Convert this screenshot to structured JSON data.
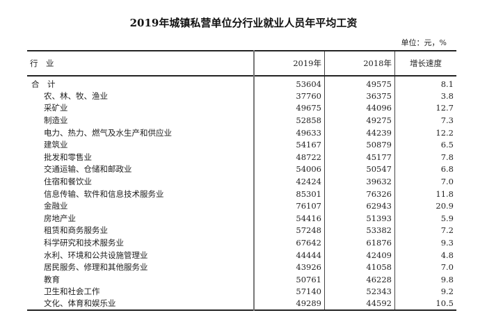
{
  "title": "2019年城镇私营单位分行业就业人员年平均工资",
  "unit": "单位：元，%",
  "headers": [
    "行　业",
    "2019年",
    "2018年",
    "增长速度"
  ],
  "rows": [
    [
      "合　计",
      "53604",
      "49575",
      "8.1"
    ],
    [
      "农、林、牧、渔业",
      "37760",
      "36375",
      "3.8"
    ],
    [
      "采矿业",
      "49675",
      "44096",
      "12.7"
    ],
    [
      "制造业",
      "52858",
      "49275",
      "7.3"
    ],
    [
      "电力、热力、燃气及水生产和供应业",
      "49633",
      "44239",
      "12.2"
    ],
    [
      "建筑业",
      "54167",
      "50879",
      "6.5"
    ],
    [
      "批发和零售业",
      "48722",
      "45177",
      "7.8"
    ],
    [
      "交通运输、仓储和邮政业",
      "54006",
      "50547",
      "6.8"
    ],
    [
      "住宿和餐饮业",
      "42424",
      "39632",
      "7.0"
    ],
    [
      "信息传输、软件和信息技术服务业",
      "85301",
      "76326",
      "11.8"
    ],
    [
      "金融业",
      "76107",
      "62943",
      "20.9"
    ],
    [
      "房地产业",
      "54416",
      "51393",
      "5.9"
    ],
    [
      "租赁和商务服务业",
      "57248",
      "53382",
      "7.2"
    ],
    [
      "科学研究和技术服务业",
      "67642",
      "61876",
      "9.3"
    ],
    [
      "水利、环境和公共设施管理业",
      "44444",
      "42409",
      "4.8"
    ],
    [
      "居民服务、修理和其他服务业",
      "43926",
      "41058",
      "7.0"
    ],
    [
      "教育",
      "50761",
      "46228",
      "9.8"
    ],
    [
      "卫生和社会工作",
      "57140",
      "52343",
      "9.2"
    ],
    [
      "文化、体育和娱乐业",
      "49289",
      "44592",
      "10.5"
    ]
  ]
}
